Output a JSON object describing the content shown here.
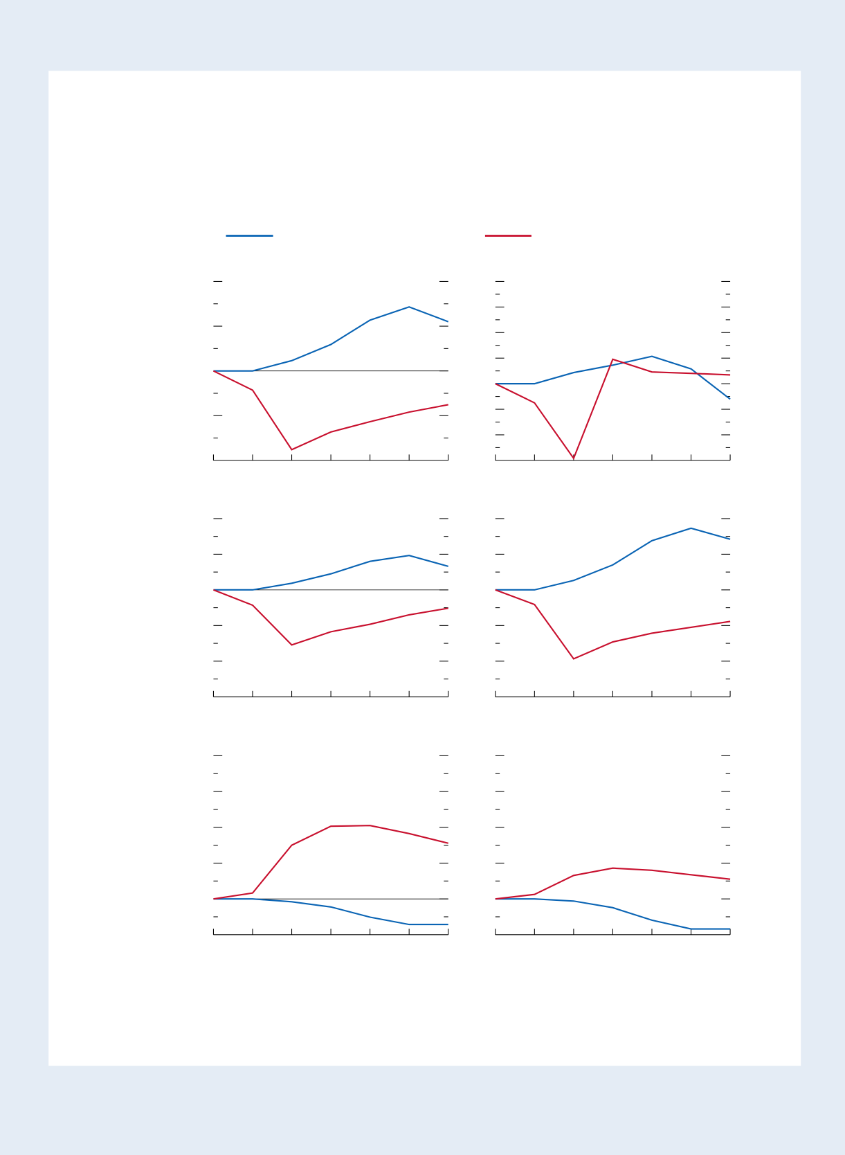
{
  "chart_data": [
    {
      "type": "line",
      "categories": [
        null,
        null,
        null,
        null,
        null,
        null,
        null
      ],
      "ylim": [
        -4,
        4
      ],
      "yticks": [
        -3,
        -2,
        -1,
        0,
        1,
        2,
        3,
        4
      ],
      "zero_line": true,
      "series": [
        {
          "color": "#0a64b4",
          "values": [
            0,
            0,
            0.46,
            1.18,
            2.27,
            2.86,
            2.2
          ]
        },
        {
          "color": "#c8102e",
          "values": [
            0,
            -0.86,
            -3.52,
            -2.73,
            -2.27,
            -1.84,
            -1.51
          ]
        }
      ]
    },
    {
      "type": "line",
      "categories": [
        null,
        null,
        null,
        null,
        null,
        null,
        null
      ],
      "ylim": [
        -6,
        8
      ],
      "yticks": [
        -5,
        -4,
        -3,
        -2,
        -1,
        0,
        1,
        2,
        3,
        4,
        5,
        6,
        7,
        8
      ],
      "zero_line": false,
      "series": [
        {
          "color": "#0a64b4",
          "values": [
            0,
            0,
            0.87,
            1.45,
            2.14,
            1.16,
            -1.21
          ]
        },
        {
          "color": "#c8102e",
          "values": [
            0,
            -1.5,
            -5.84,
            1.91,
            0.92,
            0.81,
            0.69
          ]
        }
      ]
    },
    {
      "type": "line",
      "categories": [
        null,
        null,
        null,
        null,
        null,
        null,
        null
      ],
      "ylim": [
        -6,
        4
      ],
      "yticks": [
        -5,
        -4,
        -3,
        -2,
        -1,
        0,
        1,
        2,
        3,
        4
      ],
      "zero_line": true,
      "series": [
        {
          "color": "#0a64b4",
          "values": [
            0,
            0,
            0.37,
            0.9,
            1.6,
            1.93,
            1.32
          ]
        },
        {
          "color": "#c8102e",
          "values": [
            0,
            -0.86,
            -3.09,
            -2.35,
            -1.93,
            -1.4,
            -1.03
          ]
        }
      ]
    },
    {
      "type": "line",
      "categories": [
        null,
        null,
        null,
        null,
        null,
        null,
        null
      ],
      "ylim": [
        -6,
        4
      ],
      "yticks": [
        -5,
        -4,
        -3,
        -2,
        -1,
        0,
        1,
        2,
        3,
        4
      ],
      "zero_line": false,
      "series": [
        {
          "color": "#0a64b4",
          "values": [
            0,
            0,
            0.53,
            1.4,
            2.76,
            3.46,
            2.84
          ]
        },
        {
          "color": "#c8102e",
          "values": [
            0,
            -0.82,
            -3.87,
            -2.92,
            -2.43,
            -2.1,
            -1.77
          ]
        }
      ]
    },
    {
      "type": "line",
      "categories": [
        null,
        null,
        null,
        null,
        null,
        null,
        null
      ],
      "ylim": [
        -2,
        8
      ],
      "yticks": [
        -1,
        0,
        1,
        2,
        3,
        4,
        5,
        6,
        7,
        8
      ],
      "zero_line": true,
      "series": [
        {
          "color": "#0a64b4",
          "values": [
            0,
            0,
            -0.16,
            -0.45,
            -1.02,
            -1.43,
            -1.43
          ]
        },
        {
          "color": "#c8102e",
          "values": [
            0,
            0.33,
            3.0,
            4.06,
            4.1,
            3.65,
            3.11
          ]
        }
      ]
    },
    {
      "type": "line",
      "categories": [
        null,
        null,
        null,
        null,
        null,
        null,
        null
      ],
      "ylim": [
        -2,
        8
      ],
      "yticks": [
        -1,
        0,
        1,
        2,
        3,
        4,
        5,
        6,
        7,
        8
      ],
      "zero_line": false,
      "series": [
        {
          "color": "#0a64b4",
          "values": [
            0,
            0,
            -0.12,
            -0.49,
            -1.19,
            -1.68,
            -1.68
          ]
        },
        {
          "color": "#c8102e",
          "values": [
            0,
            0.25,
            1.31,
            1.72,
            1.6,
            1.35,
            1.1
          ]
        }
      ]
    }
  ]
}
